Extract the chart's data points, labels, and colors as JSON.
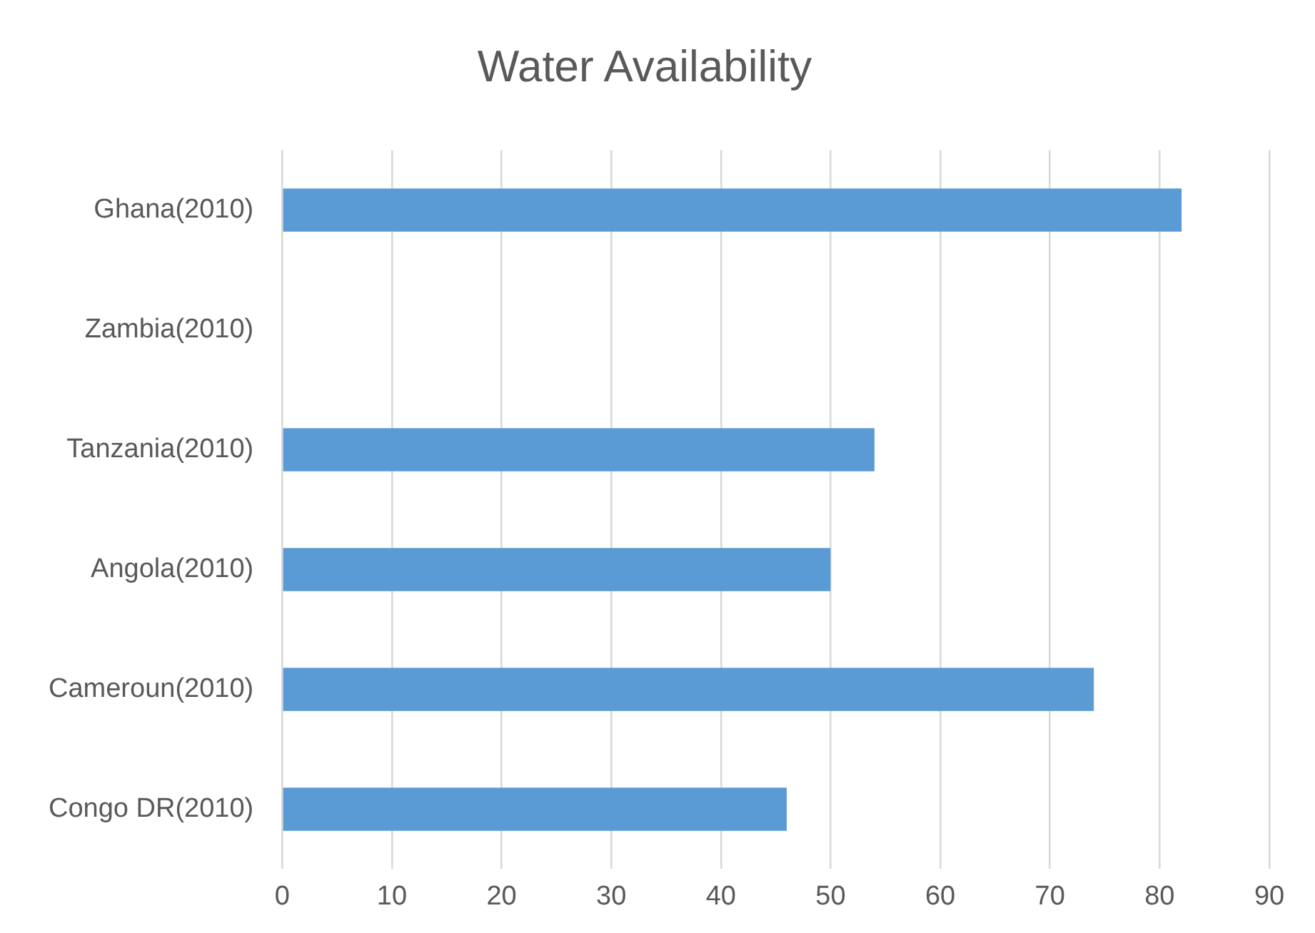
{
  "chart_data": {
    "type": "bar",
    "orientation": "horizontal",
    "title": "Water Availability",
    "categories": [
      "Ghana(2010)",
      "Zambia(2010)",
      "Tanzania(2010)",
      "Angola(2010)",
      "Cameroun(2010)",
      "Congo DR(2010)"
    ],
    "values": [
      82,
      null,
      54,
      50,
      74,
      46
    ],
    "color": "#5b9bd5",
    "xlim": [
      0,
      90
    ],
    "xticks": [
      0,
      10,
      20,
      30,
      40,
      50,
      60,
      70,
      80,
      90
    ],
    "grid": "x",
    "legend": false
  }
}
